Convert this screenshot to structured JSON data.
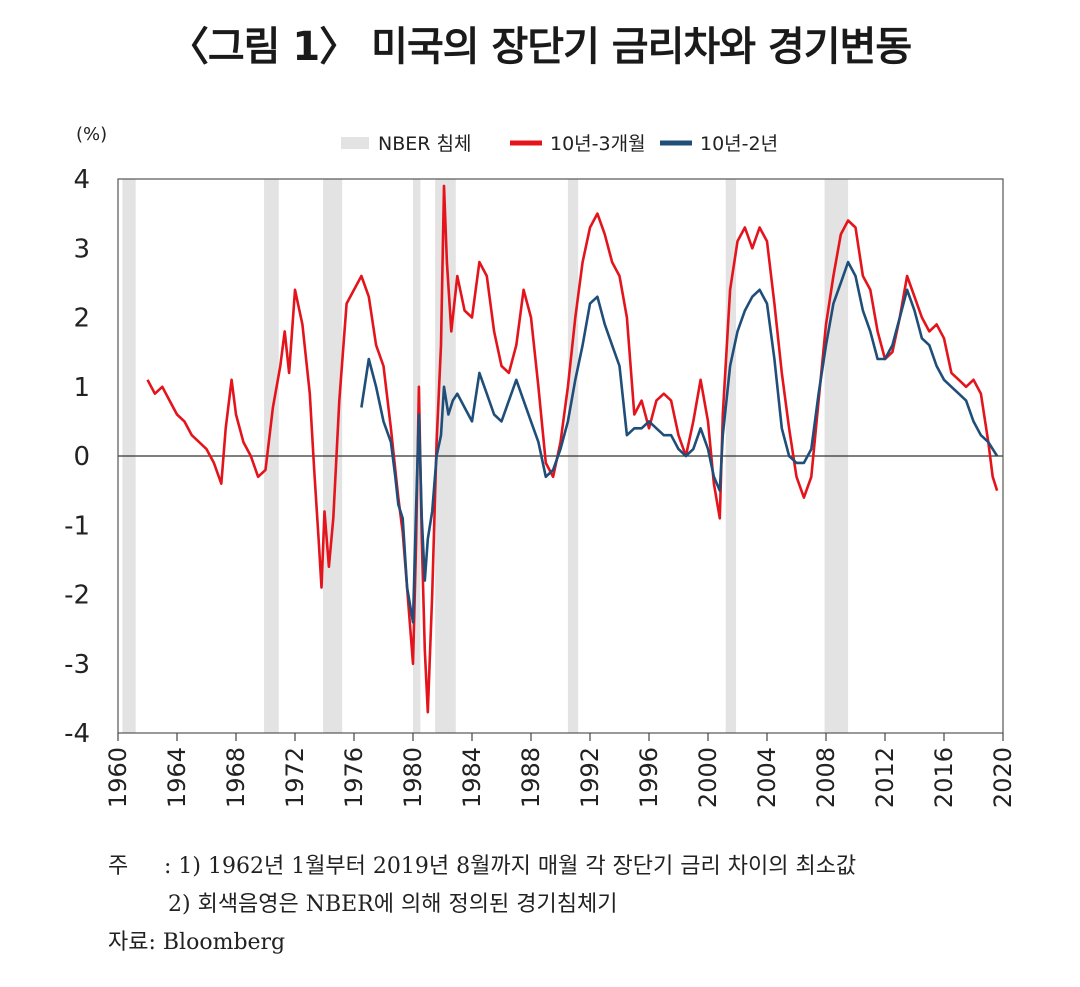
{
  "title": "〈그림 1〉 미국의 장단기 금리차와 경기변동",
  "notes": {
    "prefix": "주",
    "note1": ": 1) 1962년 1월부터 2019년 8월까지 매월 각 장단기 금리 차이의 최소값",
    "note2": "2) 회색음영은 NBER에 의해 정의된 경기침체기",
    "source": "자료: Bloomberg"
  },
  "chart_data": {
    "type": "line",
    "unit_label": "(%)",
    "xlim": [
      1960,
      2020
    ],
    "ylim": [
      -4,
      4
    ],
    "x_ticks": [
      "1960",
      "1964",
      "1968",
      "1972",
      "1976",
      "1980",
      "1984",
      "1988",
      "1992",
      "1996",
      "2000",
      "2004",
      "2008",
      "2012",
      "2016",
      "2020"
    ],
    "y_ticks": [
      "4",
      "3",
      "2",
      "1",
      "0",
      "-1",
      "-2",
      "-3",
      "-4"
    ],
    "grid": false,
    "legend_position": "top",
    "recessions_label": "NBER 침체",
    "recessions": [
      [
        1960.3,
        1961.2
      ],
      [
        1969.9,
        1970.9
      ],
      [
        1973.9,
        1975.2
      ],
      [
        1980.0,
        1980.5
      ],
      [
        1981.5,
        1982.9
      ],
      [
        1990.5,
        1991.2
      ],
      [
        2001.2,
        2001.9
      ],
      [
        2007.9,
        2009.5
      ]
    ],
    "colors": {
      "recession": "#e3e3e3",
      "series_3m": "#e4141c",
      "series_2y": "#1f4e79"
    },
    "series": [
      {
        "name": "10년-3개월",
        "x": [
          1962.0,
          1962.5,
          1963.0,
          1963.5,
          1964.0,
          1964.5,
          1965.0,
          1965.5,
          1966.0,
          1966.5,
          1967.0,
          1967.3,
          1967.7,
          1968.0,
          1968.5,
          1969.0,
          1969.5,
          1970.0,
          1970.5,
          1971.0,
          1971.3,
          1971.6,
          1972.0,
          1972.5,
          1973.0,
          1973.3,
          1973.6,
          1973.8,
          1974.0,
          1974.3,
          1974.6,
          1975.0,
          1975.5,
          1976.0,
          1976.5,
          1977.0,
          1977.5,
          1978.0,
          1978.5,
          1978.8,
          1979.0,
          1979.3,
          1979.6,
          1980.0,
          1980.2,
          1980.4,
          1980.6,
          1980.8,
          1981.0,
          1981.3,
          1981.6,
          1981.9,
          1982.1,
          1982.3,
          1982.6,
          1983.0,
          1983.5,
          1984.0,
          1984.5,
          1985.0,
          1985.5,
          1986.0,
          1986.5,
          1987.0,
          1987.5,
          1988.0,
          1988.5,
          1989.0,
          1989.5,
          1990.0,
          1990.5,
          1991.0,
          1991.5,
          1992.0,
          1992.5,
          1993.0,
          1993.5,
          1994.0,
          1994.5,
          1995.0,
          1995.5,
          1996.0,
          1996.5,
          1997.0,
          1997.5,
          1998.0,
          1998.5,
          1999.0,
          1999.5,
          2000.0,
          2000.4,
          2000.8,
          2001.0,
          2001.5,
          2002.0,
          2002.5,
          2003.0,
          2003.5,
          2004.0,
          2004.5,
          2005.0,
          2005.5,
          2006.0,
          2006.5,
          2007.0,
          2007.5,
          2008.0,
          2008.5,
          2009.0,
          2009.5,
          2010.0,
          2010.5,
          2011.0,
          2011.5,
          2012.0,
          2012.5,
          2013.0,
          2013.5,
          2014.0,
          2014.5,
          2015.0,
          2015.5,
          2016.0,
          2016.5,
          2017.0,
          2017.5,
          2018.0,
          2018.5,
          2019.0,
          2019.3,
          2019.6
        ],
        "y": [
          1.1,
          0.9,
          1.0,
          0.8,
          0.6,
          0.5,
          0.3,
          0.2,
          0.1,
          -0.1,
          -0.4,
          0.4,
          1.1,
          0.6,
          0.2,
          0.0,
          -0.3,
          -0.2,
          0.7,
          1.3,
          1.8,
          1.2,
          2.4,
          1.9,
          0.9,
          -0.2,
          -1.2,
          -1.9,
          -0.8,
          -1.6,
          -0.9,
          0.8,
          2.2,
          2.4,
          2.6,
          2.3,
          1.6,
          1.3,
          0.4,
          -0.2,
          -0.6,
          -1.1,
          -1.9,
          -3.0,
          -1.3,
          1.0,
          -1.2,
          -2.8,
          -3.7,
          -2.0,
          0.2,
          1.6,
          3.9,
          2.8,
          1.8,
          2.6,
          2.1,
          2.0,
          2.8,
          2.6,
          1.8,
          1.3,
          1.2,
          1.6,
          2.4,
          2.0,
          1.0,
          -0.1,
          -0.3,
          0.2,
          1.0,
          2.0,
          2.8,
          3.3,
          3.5,
          3.2,
          2.8,
          2.6,
          2.0,
          0.6,
          0.8,
          0.4,
          0.8,
          0.9,
          0.8,
          0.3,
          0.0,
          0.5,
          1.1,
          0.5,
          -0.4,
          -0.9,
          0.6,
          2.4,
          3.1,
          3.3,
          3.0,
          3.3,
          3.1,
          2.2,
          1.2,
          0.4,
          -0.3,
          -0.6,
          -0.3,
          0.8,
          1.9,
          2.6,
          3.2,
          3.4,
          3.3,
          2.6,
          2.4,
          1.8,
          1.4,
          1.5,
          2.0,
          2.6,
          2.3,
          2.0,
          1.8,
          1.9,
          1.7,
          1.2,
          1.1,
          1.0,
          1.1,
          0.9,
          0.2,
          -0.3,
          -0.5
        ]
      },
      {
        "name": "10년-2년",
        "x": [
          1976.5,
          1977.0,
          1977.5,
          1978.0,
          1978.5,
          1978.8,
          1979.0,
          1979.3,
          1979.6,
          1980.0,
          1980.2,
          1980.4,
          1980.6,
          1980.8,
          1981.0,
          1981.3,
          1981.6,
          1981.9,
          1982.1,
          1982.4,
          1982.7,
          1983.0,
          1983.5,
          1984.0,
          1984.5,
          1985.0,
          1985.5,
          1986.0,
          1986.5,
          1987.0,
          1987.5,
          1988.0,
          1988.5,
          1989.0,
          1989.5,
          1990.0,
          1990.5,
          1991.0,
          1991.5,
          1992.0,
          1992.5,
          1993.0,
          1993.5,
          1994.0,
          1994.5,
          1995.0,
          1995.5,
          1996.0,
          1996.5,
          1997.0,
          1997.5,
          1998.0,
          1998.5,
          1999.0,
          1999.5,
          2000.0,
          2000.4,
          2000.8,
          2001.0,
          2001.5,
          2002.0,
          2002.5,
          2003.0,
          2003.5,
          2004.0,
          2004.5,
          2005.0,
          2005.5,
          2006.0,
          2006.5,
          2007.0,
          2007.5,
          2008.0,
          2008.5,
          2009.0,
          2009.5,
          2010.0,
          2010.5,
          2011.0,
          2011.5,
          2012.0,
          2012.5,
          2013.0,
          2013.5,
          2014.0,
          2014.5,
          2015.0,
          2015.5,
          2016.0,
          2016.5,
          2017.0,
          2017.5,
          2018.0,
          2018.5,
          2019.0,
          2019.3,
          2019.6
        ],
        "y": [
          0.7,
          1.4,
          1.0,
          0.5,
          0.2,
          -0.3,
          -0.7,
          -0.9,
          -1.9,
          -2.4,
          -0.8,
          0.6,
          -0.9,
          -1.8,
          -1.2,
          -0.8,
          0.0,
          0.3,
          1.0,
          0.6,
          0.8,
          0.9,
          0.7,
          0.5,
          1.2,
          0.9,
          0.6,
          0.5,
          0.8,
          1.1,
          0.8,
          0.5,
          0.2,
          -0.3,
          -0.2,
          0.1,
          0.5,
          1.1,
          1.6,
          2.2,
          2.3,
          1.9,
          1.6,
          1.3,
          0.3,
          0.4,
          0.4,
          0.5,
          0.4,
          0.3,
          0.3,
          0.1,
          0.0,
          0.1,
          0.4,
          0.1,
          -0.3,
          -0.5,
          0.3,
          1.3,
          1.8,
          2.1,
          2.3,
          2.4,
          2.2,
          1.4,
          0.4,
          0.0,
          -0.1,
          -0.1,
          0.1,
          0.9,
          1.6,
          2.2,
          2.5,
          2.8,
          2.6,
          2.1,
          1.8,
          1.4,
          1.4,
          1.6,
          2.0,
          2.4,
          2.1,
          1.7,
          1.6,
          1.3,
          1.1,
          1.0,
          0.9,
          0.8,
          0.5,
          0.3,
          0.2,
          0.1,
          0.0
        ]
      }
    ]
  }
}
